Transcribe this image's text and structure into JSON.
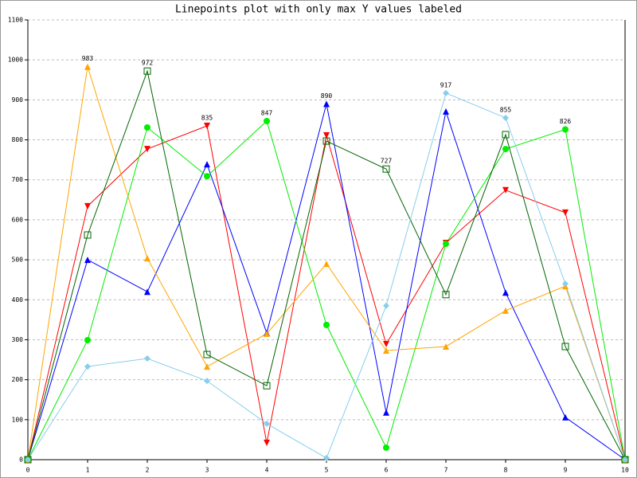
{
  "chart_data": {
    "type": "line",
    "title": "Linepoints plot with only max Y values labeled",
    "x": [
      0,
      1,
      2,
      3,
      4,
      5,
      6,
      7,
      8,
      9,
      10
    ],
    "xlim": [
      0,
      10
    ],
    "xticks": [
      0,
      1,
      2,
      3,
      4,
      5,
      6,
      7,
      8,
      9,
      10
    ],
    "ylim": [
      0,
      1100
    ],
    "yticks": [
      0,
      100,
      200,
      300,
      400,
      500,
      600,
      700,
      800,
      900,
      1000,
      1100
    ],
    "grid": true,
    "series": [
      {
        "color": "#ff0000",
        "marker": "triangle-down",
        "values": [
          0,
          634,
          777,
          835,
          42,
          811,
          289,
          542,
          674,
          618,
          0
        ]
      },
      {
        "color": "#0000ff",
        "marker": "triangle-up",
        "values": [
          0,
          500,
          420,
          739,
          317,
          890,
          118,
          871,
          418,
          106,
          0
        ]
      },
      {
        "color": "#00ee00",
        "marker": "circle",
        "values": [
          0,
          299,
          831,
          709,
          847,
          337,
          30,
          540,
          777,
          826,
          0
        ]
      },
      {
        "color": "#ffa500",
        "marker": "triangle-up",
        "values": [
          0,
          983,
          504,
          233,
          315,
          490,
          273,
          283,
          373,
          434,
          0
        ]
      },
      {
        "color": "#006400",
        "marker": "square-open",
        "values": [
          0,
          562,
          972,
          263,
          185,
          797,
          727,
          413,
          813,
          283,
          0
        ]
      },
      {
        "color": "#87ceeb",
        "marker": "diamond",
        "values": [
          0,
          233,
          253,
          197,
          90,
          4,
          385,
          917,
          855,
          440,
          0
        ]
      }
    ]
  }
}
